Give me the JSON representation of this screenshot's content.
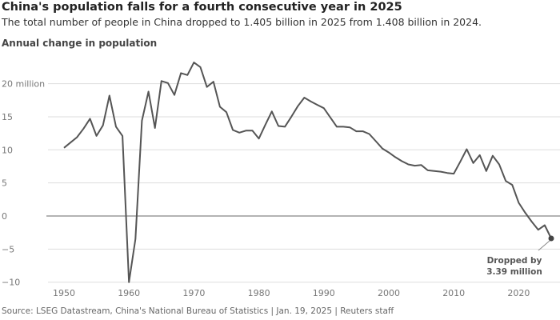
{
  "title": "China's population falls for a fourth consecutive year in 2025",
  "subtitle": "The total number of people in China dropped to 1.405 billion in 2025 from 1.408 billion in 2024.",
  "source": "Source: LSEG Datastream, China's National Bureau of Statistics | Jan. 19, 2025  | Reuters staff",
  "chart_data": {
    "type": "line",
    "ylabel": "Annual change in population",
    "ylim": [
      -10,
      24
    ],
    "xlim": [
      1950,
      2025
    ],
    "grid": true,
    "y_ticks": [
      {
        "v": 20,
        "label": "20 million"
      },
      {
        "v": 15,
        "label": "15"
      },
      {
        "v": 10,
        "label": "10"
      },
      {
        "v": 5,
        "label": "5"
      },
      {
        "v": 0,
        "label": "0"
      },
      {
        "v": -5,
        "label": "−5"
      },
      {
        "v": -10,
        "label": "−10"
      }
    ],
    "x_ticks": [
      "1950",
      "1960",
      "1970",
      "1980",
      "1990",
      "2000",
      "2010",
      "2020"
    ],
    "line_color": "#555555",
    "annotation": {
      "x": 2025,
      "y": -3.39,
      "lines": [
        "Dropped by",
        "3.39 million"
      ]
    },
    "x": [
      1950,
      1951,
      1952,
      1953,
      1954,
      1955,
      1956,
      1957,
      1958,
      1959,
      1960,
      1961,
      1962,
      1963,
      1964,
      1965,
      1966,
      1967,
      1968,
      1969,
      1970,
      1971,
      1972,
      1973,
      1974,
      1975,
      1976,
      1977,
      1978,
      1979,
      1980,
      1981,
      1982,
      1983,
      1984,
      1985,
      1986,
      1987,
      1988,
      1989,
      1990,
      1991,
      1992,
      1993,
      1994,
      1995,
      1996,
      1997,
      1998,
      1999,
      2000,
      2001,
      2002,
      2003,
      2004,
      2005,
      2006,
      2007,
      2008,
      2009,
      2010,
      2011,
      2012,
      2013,
      2014,
      2015,
      2016,
      2017,
      2018,
      2019,
      2020,
      2021,
      2022,
      2023,
      2024,
      2025
    ],
    "y": [
      10.3,
      11.1,
      11.9,
      13.2,
      14.7,
      12.1,
      13.7,
      18.2,
      13.5,
      12.1,
      -10.0,
      -3.5,
      14.4,
      18.8,
      13.3,
      20.4,
      20.1,
      18.3,
      21.6,
      21.3,
      23.2,
      22.5,
      19.5,
      20.3,
      16.5,
      15.7,
      13.0,
      12.6,
      12.9,
      12.9,
      11.7,
      13.8,
      15.8,
      13.6,
      13.5,
      15.0,
      16.6,
      17.9,
      17.3,
      16.8,
      16.3,
      14.9,
      13.5,
      13.5,
      13.4,
      12.8,
      12.8,
      12.4,
      11.3,
      10.2,
      9.6,
      8.9,
      8.3,
      7.8,
      7.6,
      7.7,
      6.9,
      6.8,
      6.7,
      6.5,
      6.4,
      8.2,
      10.1,
      8.0,
      9.2,
      6.8,
      9.1,
      7.8,
      5.3,
      4.7,
      2.0,
      0.5,
      -0.85,
      -2.08,
      -1.39,
      -3.39
    ]
  }
}
